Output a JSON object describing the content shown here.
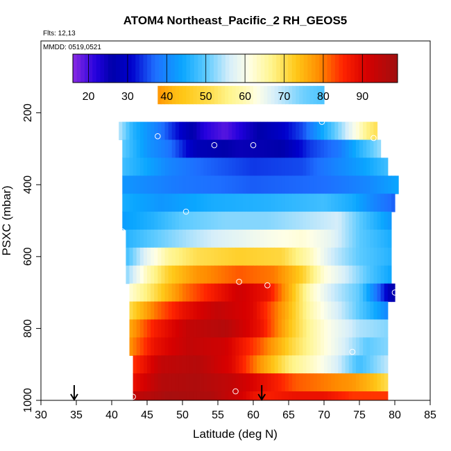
{
  "chart_data": {
    "type": "heatmap",
    "title": "ATOM4 Northeast_Pacific_2 RH_GEOS5",
    "flights_label": "Flts: 12,13",
    "dates_label": "MMDD: 0519,0521",
    "xlabel": "Latitude (deg N)",
    "ylabel": "PSXC (mbar)",
    "xlim": [
      30,
      85
    ],
    "ylim": [
      1000,
      0
    ],
    "xticks": [
      30,
      35,
      40,
      45,
      50,
      55,
      60,
      65,
      70,
      75,
      80,
      85
    ],
    "yticks": [
      200,
      400,
      600,
      800,
      1000
    ],
    "colorbar": {
      "min": 16,
      "max": 99,
      "ticks": [
        20,
        30,
        40,
        50,
        60,
        70,
        80,
        90
      ],
      "stops": [
        [
          16,
          "#8a2be2"
        ],
        [
          22,
          "#2200dd"
        ],
        [
          26,
          "#0000aa"
        ],
        [
          31,
          "#0000cd"
        ],
        [
          37,
          "#1e6fff"
        ],
        [
          44,
          "#0aa6ff"
        ],
        [
          50,
          "#5ccaff"
        ],
        [
          56,
          "#d6eefa"
        ],
        [
          61,
          "#ffffe6"
        ],
        [
          67,
          "#fff48a"
        ],
        [
          73,
          "#ffc818"
        ],
        [
          79,
          "#ff8c00"
        ],
        [
          85,
          "#ff2400"
        ],
        [
          91,
          "#d60000"
        ],
        [
          99,
          "#a01010"
        ]
      ]
    },
    "layers": [
      {
        "p_top": 125,
        "p_bot": 175,
        "lat_min": 46.5,
        "lat_max": 70,
        "profile": [
          [
            46.5,
            78
          ],
          [
            49,
            74
          ],
          [
            54,
            70
          ],
          [
            59,
            64
          ],
          [
            63,
            56
          ],
          [
            67,
            51
          ],
          [
            70,
            49
          ]
        ]
      },
      {
        "p_top": 225,
        "p_bot": 275,
        "lat_min": 41,
        "lat_max": 77.5,
        "profile": [
          [
            41,
            55
          ],
          [
            43,
            46
          ],
          [
            46,
            40
          ],
          [
            50,
            30
          ],
          [
            53,
            22
          ],
          [
            56,
            19
          ],
          [
            60,
            25
          ],
          [
            64,
            30
          ],
          [
            67,
            35
          ],
          [
            70,
            45
          ],
          [
            73,
            55
          ],
          [
            76,
            67
          ],
          [
            77.5,
            70
          ]
        ]
      },
      {
        "p_top": 275,
        "p_bot": 325,
        "lat_min": 41.5,
        "lat_max": 78,
        "profile": [
          [
            41.5,
            50
          ],
          [
            45,
            42
          ],
          [
            48,
            38
          ],
          [
            52,
            28
          ],
          [
            58,
            25
          ],
          [
            64,
            26
          ],
          [
            68,
            34
          ],
          [
            72,
            38
          ],
          [
            75,
            46
          ],
          [
            78,
            53
          ]
        ]
      },
      {
        "p_top": 325,
        "p_bot": 375,
        "lat_min": 41.5,
        "lat_max": 79,
        "profile": [
          [
            41.5,
            48
          ],
          [
            45,
            44
          ],
          [
            48,
            40
          ],
          [
            52,
            37
          ],
          [
            60,
            34
          ],
          [
            67,
            35
          ],
          [
            72,
            40
          ],
          [
            76,
            44
          ],
          [
            79,
            48
          ]
        ]
      },
      {
        "p_top": 375,
        "p_bot": 425,
        "lat_min": 41.5,
        "lat_max": 80.5,
        "profile": [
          [
            41.5,
            42
          ],
          [
            50,
            38
          ],
          [
            60,
            36
          ],
          [
            70,
            37
          ],
          [
            76,
            40
          ],
          [
            80.5,
            44
          ]
        ]
      },
      {
        "p_top": 425,
        "p_bot": 475,
        "lat_min": 41.5,
        "lat_max": 80,
        "profile": [
          [
            41.5,
            45
          ],
          [
            47,
            42
          ],
          [
            54,
            45
          ],
          [
            62,
            46
          ],
          [
            70,
            48
          ],
          [
            74,
            45
          ],
          [
            77,
            40
          ],
          [
            80,
            36
          ]
        ]
      },
      {
        "p_top": 475,
        "p_bot": 525,
        "lat_min": 41.5,
        "lat_max": 79.5,
        "profile": [
          [
            41.5,
            43
          ],
          [
            46,
            46
          ],
          [
            50,
            50
          ],
          [
            56,
            52
          ],
          [
            62,
            52
          ],
          [
            67,
            54
          ],
          [
            72,
            56
          ],
          [
            76,
            48
          ],
          [
            79.5,
            42
          ]
        ]
      },
      {
        "p_top": 525,
        "p_bot": 575,
        "lat_min": 42,
        "lat_max": 79.5,
        "profile": [
          [
            42,
            46
          ],
          [
            46,
            50
          ],
          [
            51,
            54
          ],
          [
            56,
            57
          ],
          [
            62,
            60
          ],
          [
            67,
            62
          ],
          [
            71,
            58
          ],
          [
            75,
            50
          ],
          [
            79.5,
            45
          ]
        ]
      },
      {
        "p_top": 575,
        "p_bot": 625,
        "lat_min": 42,
        "lat_max": 79.5,
        "profile": [
          [
            42,
            48
          ],
          [
            45,
            58
          ],
          [
            48,
            66
          ],
          [
            52,
            70
          ],
          [
            58,
            72
          ],
          [
            64,
            71
          ],
          [
            68,
            64
          ],
          [
            71,
            56
          ],
          [
            75,
            50
          ],
          [
            79.5,
            46
          ]
        ]
      },
      {
        "p_top": 625,
        "p_bot": 675,
        "lat_min": 42,
        "lat_max": 79.5,
        "profile": [
          [
            42,
            52
          ],
          [
            45,
            64
          ],
          [
            48,
            72
          ],
          [
            52,
            78
          ],
          [
            58,
            82
          ],
          [
            63,
            80
          ],
          [
            67,
            72
          ],
          [
            70,
            62
          ],
          [
            74,
            54
          ],
          [
            77,
            48
          ],
          [
            79.5,
            44
          ]
        ]
      },
      {
        "p_top": 675,
        "p_bot": 725,
        "lat_min": 42.5,
        "lat_max": 80,
        "profile": [
          [
            42.5,
            62
          ],
          [
            46,
            70
          ],
          [
            50,
            80
          ],
          [
            54,
            86
          ],
          [
            58,
            92
          ],
          [
            62,
            88
          ],
          [
            65,
            76
          ],
          [
            68,
            64
          ],
          [
            71,
            56
          ],
          [
            75,
            50
          ],
          [
            77,
            40
          ],
          [
            79,
            30
          ],
          [
            80,
            24
          ]
        ]
      },
      {
        "p_top": 725,
        "p_bot": 775,
        "lat_min": 42.5,
        "lat_max": 79,
        "profile": [
          [
            42.5,
            70
          ],
          [
            46,
            80
          ],
          [
            50,
            88
          ],
          [
            55,
            94
          ],
          [
            60,
            90
          ],
          [
            64,
            78
          ],
          [
            68,
            65
          ],
          [
            71,
            58
          ],
          [
            74,
            52
          ],
          [
            77,
            45
          ],
          [
            79,
            40
          ]
        ]
      },
      {
        "p_top": 775,
        "p_bot": 825,
        "lat_min": 42.5,
        "lat_max": 79,
        "profile": [
          [
            42.5,
            76
          ],
          [
            46,
            86
          ],
          [
            51,
            94
          ],
          [
            56,
            96
          ],
          [
            61,
            88
          ],
          [
            65,
            74
          ],
          [
            68,
            66
          ],
          [
            71,
            60
          ],
          [
            75,
            54
          ],
          [
            79,
            52
          ]
        ]
      },
      {
        "p_top": 825,
        "p_bot": 875,
        "lat_min": 42.5,
        "lat_max": 79,
        "profile": [
          [
            42.5,
            78
          ],
          [
            46,
            88
          ],
          [
            51,
            94
          ],
          [
            56,
            92
          ],
          [
            61,
            82
          ],
          [
            65,
            72
          ],
          [
            69,
            64
          ],
          [
            73,
            56
          ],
          [
            76,
            50
          ],
          [
            79,
            52
          ]
        ]
      },
      {
        "p_top": 875,
        "p_bot": 925,
        "lat_min": 43,
        "lat_max": 79,
        "profile": [
          [
            43,
            84
          ],
          [
            47,
            94
          ],
          [
            52,
            96
          ],
          [
            57,
            90
          ],
          [
            61,
            78
          ],
          [
            65,
            68
          ],
          [
            69,
            62
          ],
          [
            72,
            56
          ],
          [
            75,
            48
          ],
          [
            79,
            55
          ]
        ]
      },
      {
        "p_top": 925,
        "p_bot": 975,
        "lat_min": 43,
        "lat_max": 79,
        "profile": [
          [
            43,
            88
          ],
          [
            47,
            96
          ],
          [
            52,
            97
          ],
          [
            57,
            94
          ],
          [
            62,
            88
          ],
          [
            66,
            82
          ],
          [
            70,
            80
          ],
          [
            74,
            78
          ],
          [
            77,
            74
          ],
          [
            79,
            70
          ]
        ]
      },
      {
        "p_top": 975,
        "p_bot": 1000,
        "lat_min": 43,
        "lat_max": 79,
        "profile": [
          [
            43,
            94
          ],
          [
            48,
            98
          ],
          [
            54,
            97
          ],
          [
            58,
            92
          ],
          [
            60,
            88
          ],
          [
            62,
            86
          ],
          [
            66,
            88
          ],
          [
            70,
            88
          ],
          [
            74,
            84
          ],
          [
            79,
            84
          ]
        ]
      }
    ],
    "sample_points": [
      [
        46.5,
        265
      ],
      [
        54.5,
        290
      ],
      [
        60,
        290
      ],
      [
        69.7,
        225
      ],
      [
        77,
        270
      ],
      [
        50.5,
        475
      ],
      [
        41.5,
        530
      ],
      [
        80.5,
        455
      ],
      [
        58,
        670
      ],
      [
        62,
        680
      ],
      [
        80,
        700
      ],
      [
        74,
        865
      ],
      [
        57.5,
        975
      ],
      [
        43,
        990
      ],
      [
        79.5,
        995
      ]
    ],
    "arrows": [
      34.7,
      61.2
    ]
  }
}
